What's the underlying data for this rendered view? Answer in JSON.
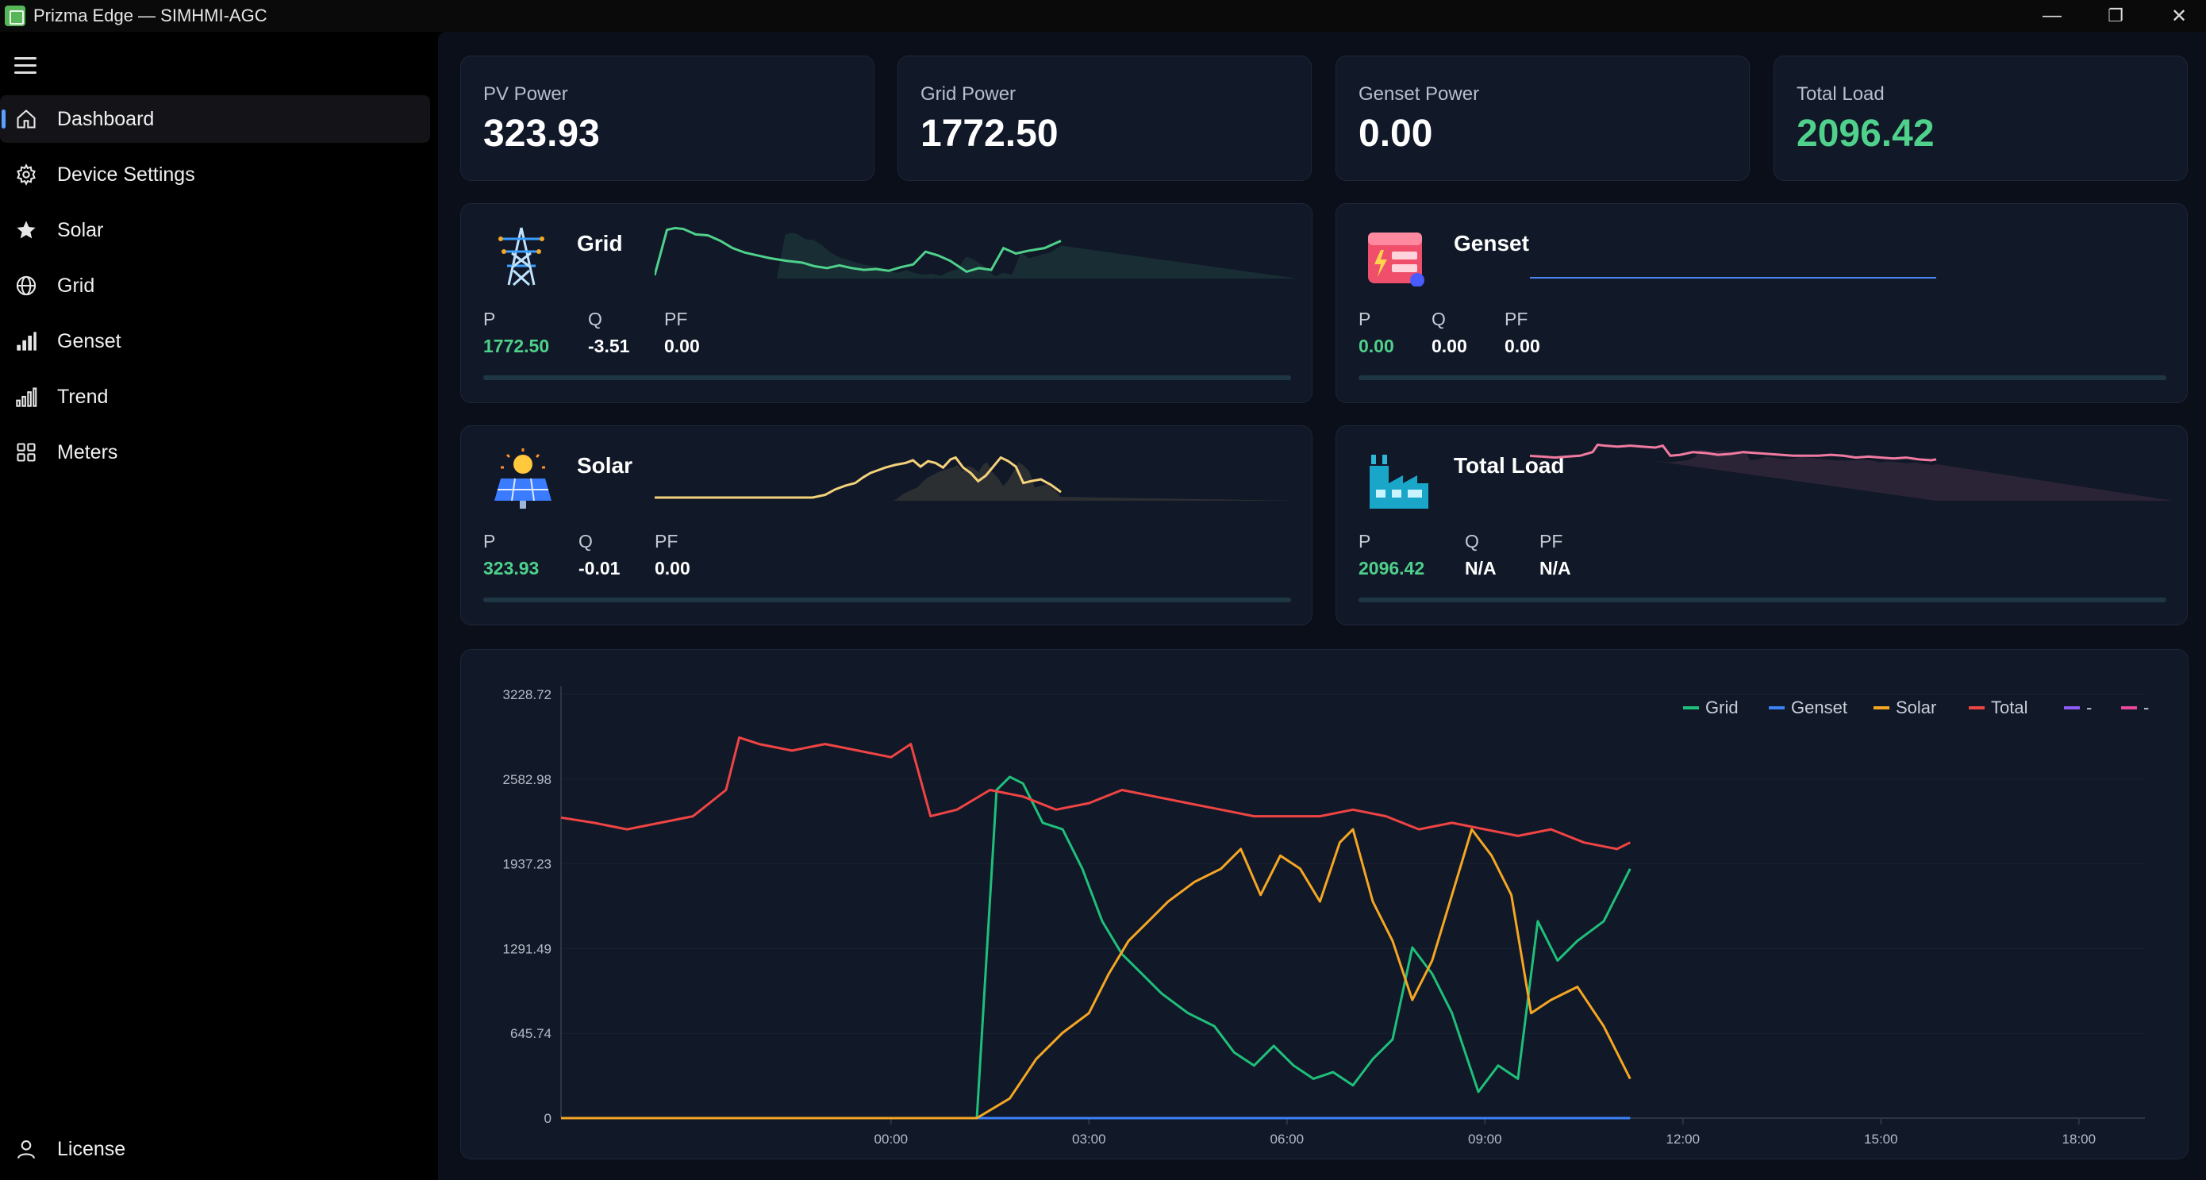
{
  "window": {
    "title": "Prizma Edge — SIMHMI-AGC",
    "minimize": "—",
    "maximize": "❐",
    "close": "✕"
  },
  "sidebar": {
    "items": [
      {
        "label": "Dashboard",
        "icon": "home-icon",
        "active": true
      },
      {
        "label": "Device Settings",
        "icon": "gear-icon"
      },
      {
        "label": "Solar",
        "icon": "star-icon"
      },
      {
        "label": "Grid",
        "icon": "globe-icon"
      },
      {
        "label": "Genset",
        "icon": "signal-bars-icon"
      },
      {
        "label": "Trend",
        "icon": "trend-bars-icon"
      },
      {
        "label": "Meters",
        "icon": "grid-squares-icon"
      }
    ],
    "footer": {
      "label": "License",
      "icon": "user-icon"
    }
  },
  "kpis": [
    {
      "label": "PV Power",
      "value": "323.93"
    },
    {
      "label": "Grid Power",
      "value": "1772.50"
    },
    {
      "label": "Genset Power",
      "value": "0.00"
    },
    {
      "label": "Total Load",
      "value": "2096.42",
      "accent": "#4fd18b"
    }
  ],
  "devices": {
    "grid": {
      "title": "Grid",
      "p_label": "P",
      "q_label": "Q",
      "pf_label": "PF",
      "p": "1772.50",
      "q": "-3.51",
      "pf": "0.00",
      "color": "#4fd18b"
    },
    "genset": {
      "title": "Genset",
      "p_label": "P",
      "q_label": "Q",
      "pf_label": "PF",
      "p": "0.00",
      "q": "0.00",
      "pf": "0.00",
      "color": "#4a86f5"
    },
    "solar": {
      "title": "Solar",
      "p_label": "P",
      "q_label": "Q",
      "pf_label": "PF",
      "p": "323.93",
      "q": "-0.01",
      "pf": "0.00",
      "color": "#f3d27a"
    },
    "total": {
      "title": "Total Load",
      "p_label": "P",
      "q_label": "Q",
      "pf_label": "PF",
      "p": "2096.42",
      "q": "N/A",
      "pf": "N/A",
      "color": "#f07aa0"
    }
  },
  "chart_data": {
    "type": "line",
    "title": "",
    "xlabel": "",
    "ylabel": "",
    "yticks": [
      "0",
      "645.74",
      "1291.49",
      "1937.23",
      "2582.98",
      "3228.72"
    ],
    "ylim": [
      0,
      3228.72
    ],
    "xticks": [
      "00:00",
      "03:00",
      "06:00",
      "09:00",
      "12:00",
      "15:00",
      "18:00"
    ],
    "xlim_hours": [
      -5,
      19
    ],
    "legend_position": "top-right",
    "grid": true,
    "series": [
      {
        "name": "Grid",
        "color": "#1fbf7a",
        "points": [
          [
            1.3,
            0
          ],
          [
            1.6,
            2500
          ],
          [
            1.8,
            2600
          ],
          [
            2.0,
            2550
          ],
          [
            2.3,
            2250
          ],
          [
            2.6,
            2200
          ],
          [
            2.9,
            1900
          ],
          [
            3.2,
            1500
          ],
          [
            3.5,
            1250
          ],
          [
            3.8,
            1100
          ],
          [
            4.1,
            950
          ],
          [
            4.5,
            800
          ],
          [
            4.9,
            700
          ],
          [
            5.2,
            500
          ],
          [
            5.5,
            400
          ],
          [
            5.8,
            550
          ],
          [
            6.1,
            400
          ],
          [
            6.4,
            300
          ],
          [
            6.7,
            350
          ],
          [
            7.0,
            250
          ],
          [
            7.3,
            450
          ],
          [
            7.6,
            600
          ],
          [
            7.9,
            1300
          ],
          [
            8.2,
            1100
          ],
          [
            8.5,
            800
          ],
          [
            8.9,
            200
          ],
          [
            9.2,
            400
          ],
          [
            9.5,
            300
          ],
          [
            9.8,
            1500
          ],
          [
            10.1,
            1200
          ],
          [
            10.4,
            1350
          ],
          [
            10.8,
            1500
          ],
          [
            11.2,
            1900
          ]
        ]
      },
      {
        "name": "Genset",
        "color": "#3b82f6",
        "points": [
          [
            1.3,
            0
          ],
          [
            11.2,
            0
          ]
        ]
      },
      {
        "name": "Solar",
        "color": "#f5a623",
        "points": [
          [
            -5,
            0
          ],
          [
            1.3,
            0
          ],
          [
            1.8,
            150
          ],
          [
            2.2,
            450
          ],
          [
            2.6,
            650
          ],
          [
            3.0,
            800
          ],
          [
            3.3,
            1100
          ],
          [
            3.6,
            1350
          ],
          [
            3.9,
            1500
          ],
          [
            4.2,
            1650
          ],
          [
            4.6,
            1800
          ],
          [
            5.0,
            1900
          ],
          [
            5.3,
            2050
          ],
          [
            5.6,
            1700
          ],
          [
            5.9,
            2000
          ],
          [
            6.2,
            1900
          ],
          [
            6.5,
            1650
          ],
          [
            6.8,
            2100
          ],
          [
            7.0,
            2200
          ],
          [
            7.3,
            1650
          ],
          [
            7.6,
            1350
          ],
          [
            7.9,
            900
          ],
          [
            8.2,
            1200
          ],
          [
            8.5,
            1700
          ],
          [
            8.8,
            2200
          ],
          [
            9.1,
            2000
          ],
          [
            9.4,
            1700
          ],
          [
            9.7,
            800
          ],
          [
            10.0,
            900
          ],
          [
            10.4,
            1000
          ],
          [
            10.8,
            700
          ],
          [
            11.2,
            300
          ]
        ]
      },
      {
        "name": "Total",
        "color": "#ef4444",
        "points": [
          [
            -5,
            2290
          ],
          [
            -4.5,
            2250
          ],
          [
            -4.0,
            2200
          ],
          [
            -3.5,
            2250
          ],
          [
            -3.0,
            2300
          ],
          [
            -2.5,
            2500
          ],
          [
            -2.3,
            2900
          ],
          [
            -2.0,
            2850
          ],
          [
            -1.5,
            2800
          ],
          [
            -1.0,
            2850
          ],
          [
            -0.5,
            2800
          ],
          [
            0.0,
            2750
          ],
          [
            0.3,
            2850
          ],
          [
            0.6,
            2300
          ],
          [
            1.0,
            2350
          ],
          [
            1.5,
            2500
          ],
          [
            2.0,
            2450
          ],
          [
            2.5,
            2350
          ],
          [
            3.0,
            2400
          ],
          [
            3.5,
            2500
          ],
          [
            4.0,
            2450
          ],
          [
            4.5,
            2400
          ],
          [
            5.0,
            2350
          ],
          [
            5.5,
            2300
          ],
          [
            6.0,
            2300
          ],
          [
            6.5,
            2300
          ],
          [
            7.0,
            2350
          ],
          [
            7.5,
            2300
          ],
          [
            8.0,
            2200
          ],
          [
            8.5,
            2250
          ],
          [
            9.0,
            2200
          ],
          [
            9.5,
            2150
          ],
          [
            10.0,
            2200
          ],
          [
            10.5,
            2100
          ],
          [
            11.0,
            2050
          ],
          [
            11.2,
            2100
          ]
        ]
      },
      {
        "name": "-",
        "color": "#8b5cf6",
        "points": []
      },
      {
        "name": "-",
        "color": "#ec4899",
        "points": []
      }
    ]
  }
}
